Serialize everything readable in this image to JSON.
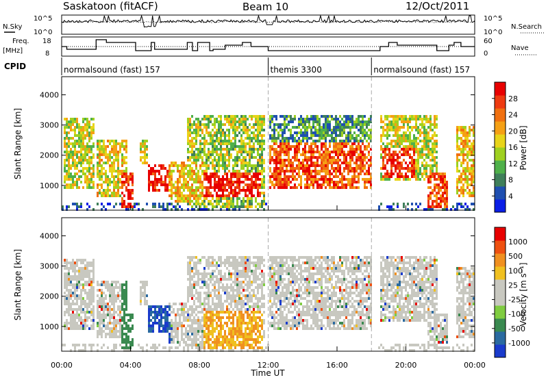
{
  "header": {
    "station": "Saskatoon (fitACF)",
    "beam": "Beam 10",
    "date": "12/Oct/2011"
  },
  "top_panels": {
    "nsky_label": "N.Sky",
    "nsky_ticks": [
      "10^5",
      "10^0"
    ],
    "nsearch_label": "N.Search",
    "nsearch_ticks": [
      "10^5",
      "10^0"
    ],
    "freq_label": "Freq.",
    "freq_unit": "[MHz]",
    "freq_ticks": [
      "18",
      "8"
    ],
    "nave_label": "Nave",
    "nave_ticks": [
      "60",
      "0"
    ],
    "cpid_label": "CPID"
  },
  "cpid_segments": [
    {
      "label": "normalsound (fast) 157",
      "start_h": 0
    },
    {
      "label": "themis 3300",
      "start_h": 12
    },
    {
      "label": "normalsound (fast) 157",
      "start_h": 18
    }
  ],
  "x_axis": {
    "label": "Time UT",
    "ticks": [
      "00:00",
      "04:00",
      "08:00",
      "12:00",
      "16:00",
      "20:00",
      "00:00"
    ]
  },
  "chart_data": [
    {
      "type": "heatmap",
      "name": "power",
      "xlabel": "Time UT",
      "ylabel": "Slant Range [km]",
      "xlim": [
        0,
        24
      ],
      "ylim": [
        180,
        4600
      ],
      "yticks": [
        "1000",
        "2000",
        "3000",
        "4000"
      ],
      "colorbar": {
        "label": "Power [dB]",
        "ticks": [
          "4",
          "8",
          "12",
          "16",
          "20",
          "24",
          "28"
        ],
        "colors": [
          "#0a1ee6",
          "#1f4fb0",
          "#3f7f5a",
          "#4fb04a",
          "#9fd020",
          "#e8d41a",
          "#f5a015",
          "#f07010",
          "#ee3a10",
          "#e80000"
        ]
      }
    },
    {
      "type": "heatmap",
      "name": "velocity",
      "xlabel": "Time UT",
      "ylabel": "Slant Range [km]",
      "xlim": [
        0,
        24
      ],
      "ylim": [
        180,
        4600
      ],
      "yticks": [
        "1000",
        "2000",
        "3000",
        "4000"
      ],
      "colorbar": {
        "label": "Velocity [m s⁻¹]",
        "ticks": [
          "1000",
          "500",
          "100",
          "25",
          "-25",
          "-100",
          "-500",
          "-1000"
        ],
        "colors": [
          "#1a3bcc",
          "#2a6aa0",
          "#3a8a50",
          "#7fcc40",
          "#c8c8c0",
          "#c8c8c0",
          "#f0c020",
          "#f09020",
          "#ee5010",
          "#e80000"
        ]
      }
    }
  ]
}
